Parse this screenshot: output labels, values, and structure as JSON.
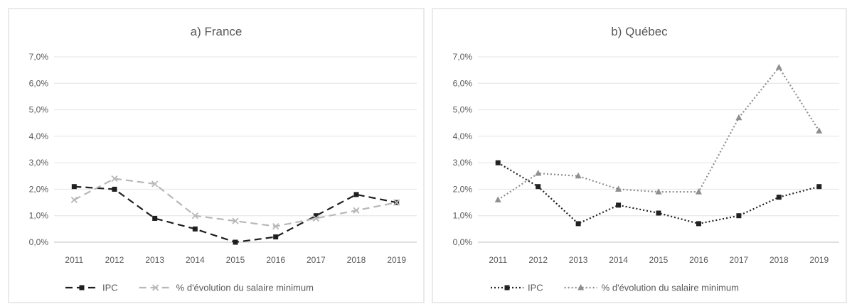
{
  "chart_data": [
    {
      "type": "line",
      "title": "a) France",
      "categories": [
        "2011",
        "2012",
        "2013",
        "2014",
        "2015",
        "2016",
        "2017",
        "2018",
        "2019"
      ],
      "ylim": [
        0,
        0.07
      ],
      "yticks": [
        "0,0%",
        "1,0%",
        "2,0%",
        "3,0%",
        "4,0%",
        "5,0%",
        "6,0%",
        "7,0%"
      ],
      "grid": true,
      "legend_position": "bottom",
      "series": [
        {
          "name": "IPC",
          "color": "#1f1f1f",
          "style": "dashed",
          "marker": "square",
          "values": [
            0.021,
            0.02,
            0.009,
            0.005,
            0.0,
            0.002,
            0.01,
            0.018,
            0.015
          ]
        },
        {
          "name": "% d'évolution du salaire minimum",
          "color": "#b8b8b8",
          "style": "dashed",
          "marker": "x",
          "values": [
            0.016,
            0.024,
            0.022,
            0.01,
            0.008,
            0.006,
            0.009,
            0.012,
            0.015
          ]
        }
      ]
    },
    {
      "type": "line",
      "title": "b) Québec",
      "categories": [
        "2011",
        "2012",
        "2013",
        "2014",
        "2015",
        "2016",
        "2017",
        "2018",
        "2019"
      ],
      "ylim": [
        0,
        0.07
      ],
      "yticks": [
        "0,0%",
        "1,0%",
        "2,0%",
        "3,0%",
        "4,0%",
        "5,0%",
        "6,0%",
        "7,0%"
      ],
      "grid": true,
      "legend_position": "bottom",
      "series": [
        {
          "name": "IPC",
          "color": "#222222",
          "style": "dotted",
          "marker": "square",
          "values": [
            0.03,
            0.021,
            0.007,
            0.014,
            0.011,
            0.007,
            0.01,
            0.017,
            0.021
          ]
        },
        {
          "name": "% d'évolution du salaire minimum",
          "color": "#8f8f8f",
          "style": "dotted",
          "marker": "triangle",
          "values": [
            0.016,
            0.026,
            0.025,
            0.02,
            0.019,
            0.019,
            0.047,
            0.066,
            0.042
          ]
        }
      ]
    }
  ]
}
